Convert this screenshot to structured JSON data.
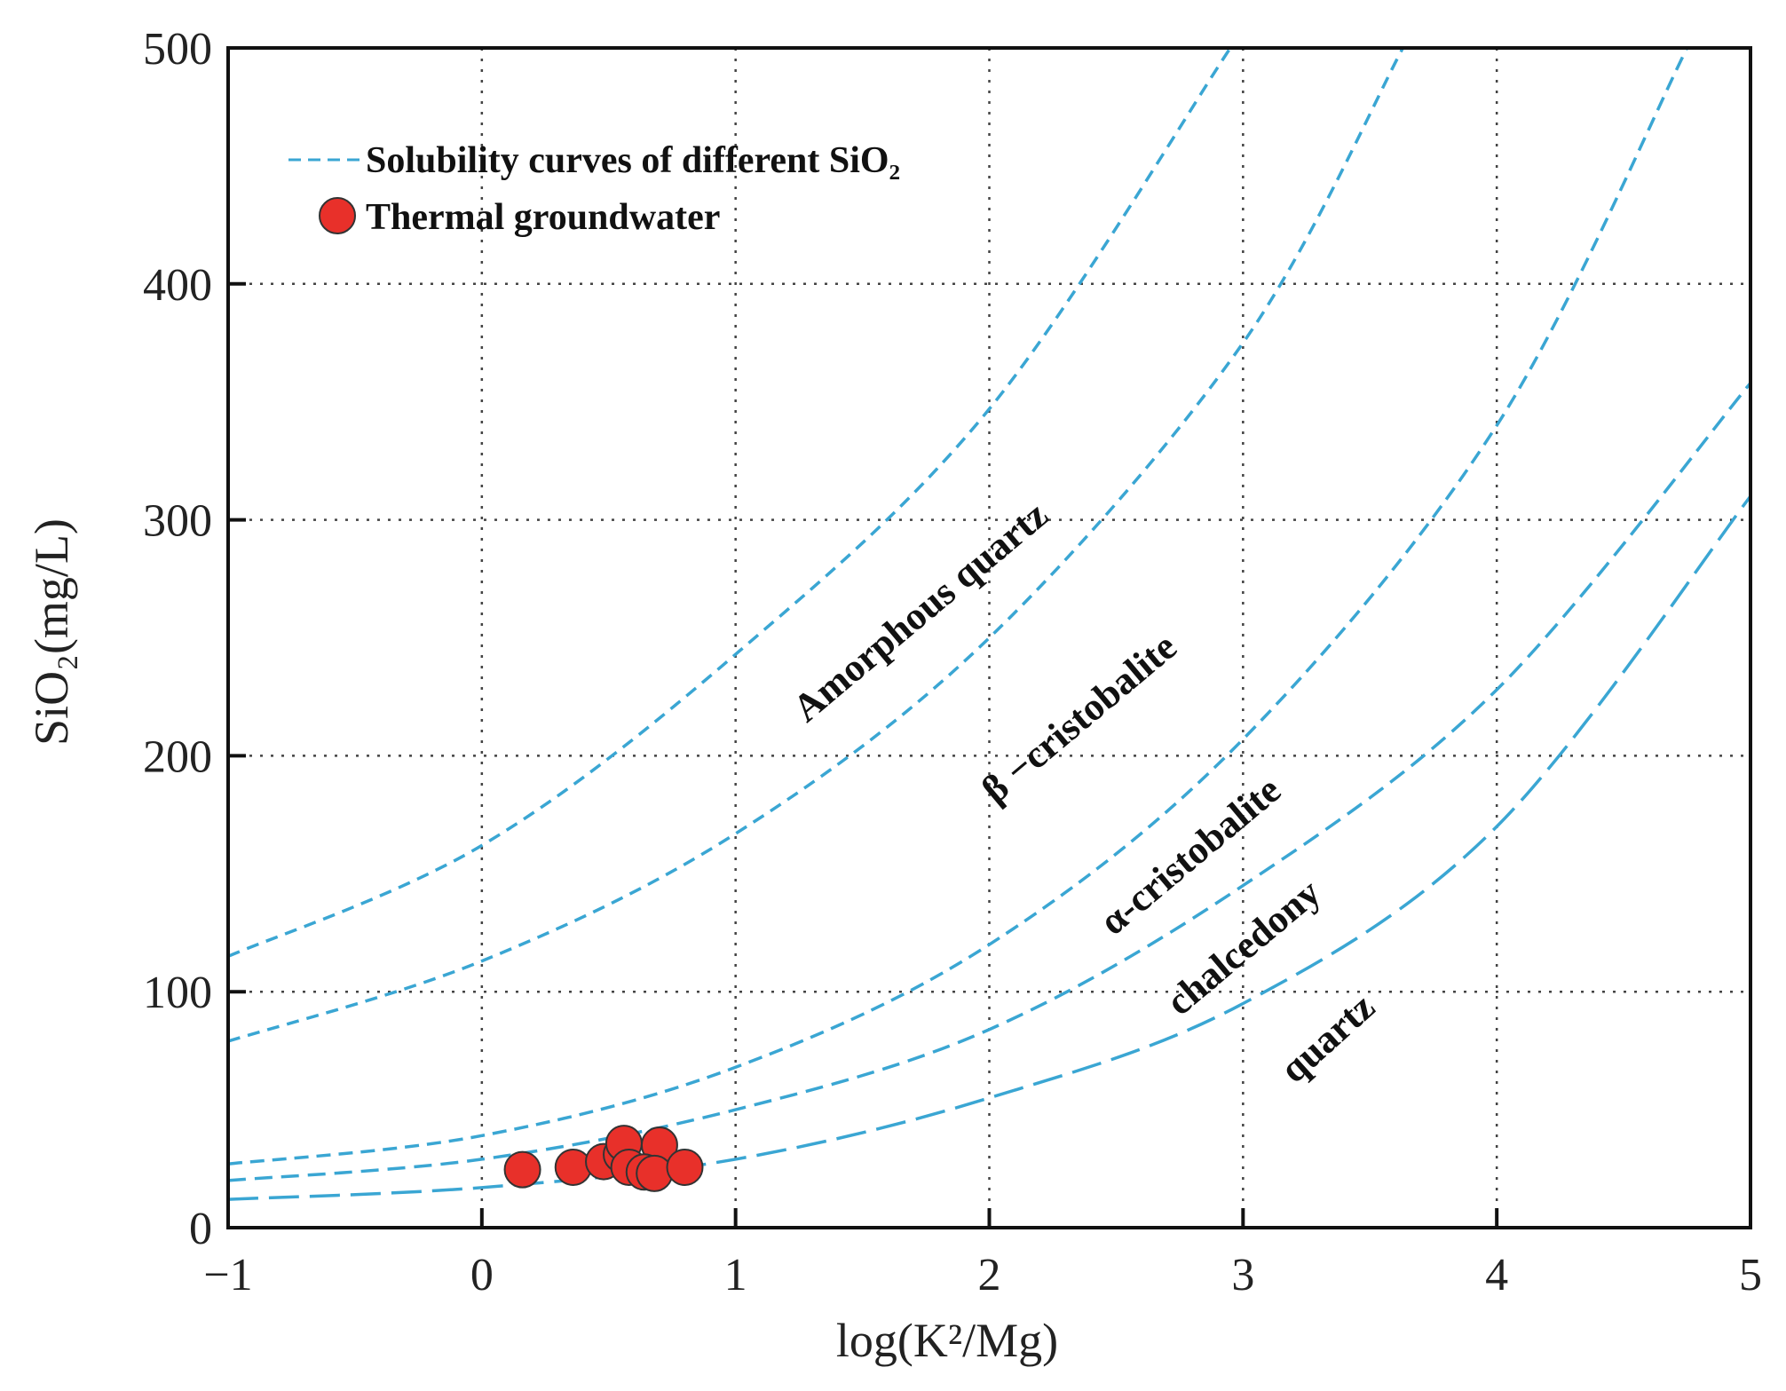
{
  "chart_data": {
    "type": "scatter",
    "xlabel": "log(K²/Mg)",
    "ylabel": "SiO₂(mg/L)",
    "xlim": [
      -1,
      5
    ],
    "ylim": [
      0,
      500
    ],
    "xticks": [
      -1,
      0,
      1,
      2,
      3,
      4,
      5
    ],
    "yticks": [
      0,
      100,
      200,
      300,
      400,
      500
    ],
    "xtick_labels": [
      "−1",
      "0",
      "1",
      "2",
      "3",
      "4",
      "5"
    ],
    "ytick_labels": [
      "0",
      "100",
      "200",
      "300",
      "400",
      "500"
    ],
    "grid": true,
    "legend_position": "top-left",
    "legend": {
      "curves_label": "Solubility curves of different SiO₂",
      "points_label": "Thermal groundwater"
    },
    "colors": {
      "curve": "#3aa6d3",
      "point": "#e8302a",
      "point_edge": "#333333"
    },
    "curves": [
      {
        "label": "Amorphous quartz",
        "x": [
          -1,
          0,
          1,
          2,
          2.95
        ],
        "y": [
          115,
          162,
          243,
          347,
          500
        ]
      },
      {
        "label": "β −cristobalite",
        "x": [
          -1,
          0,
          1,
          2,
          3,
          3.63
        ],
        "y": [
          79,
          113,
          167,
          250,
          375,
          500
        ]
      },
      {
        "label": "α-cristobalite",
        "x": [
          -1,
          0,
          1,
          2,
          3,
          4,
          4.75
        ],
        "y": [
          27,
          39,
          68,
          120,
          207,
          340,
          500
        ]
      },
      {
        "label": "chalcedony",
        "x": [
          -1,
          0,
          1,
          2,
          3,
          4,
          5
        ],
        "y": [
          20,
          29,
          50,
          84,
          145,
          228,
          358
        ]
      },
      {
        "label": "quartz",
        "x": [
          -1,
          0,
          1,
          2,
          3,
          4,
          5
        ],
        "y": [
          12,
          17,
          29,
          55,
          95,
          170,
          310
        ]
      }
    ],
    "points": {
      "name": "Thermal groundwater",
      "x": [
        0.16,
        0.36,
        0.48,
        0.55,
        0.56,
        0.58,
        0.7,
        0.64,
        0.68,
        0.8
      ],
      "y": [
        24.6,
        25.6,
        28,
        31,
        35.7,
        25.6,
        35,
        23.6,
        23,
        25.6
      ]
    }
  }
}
